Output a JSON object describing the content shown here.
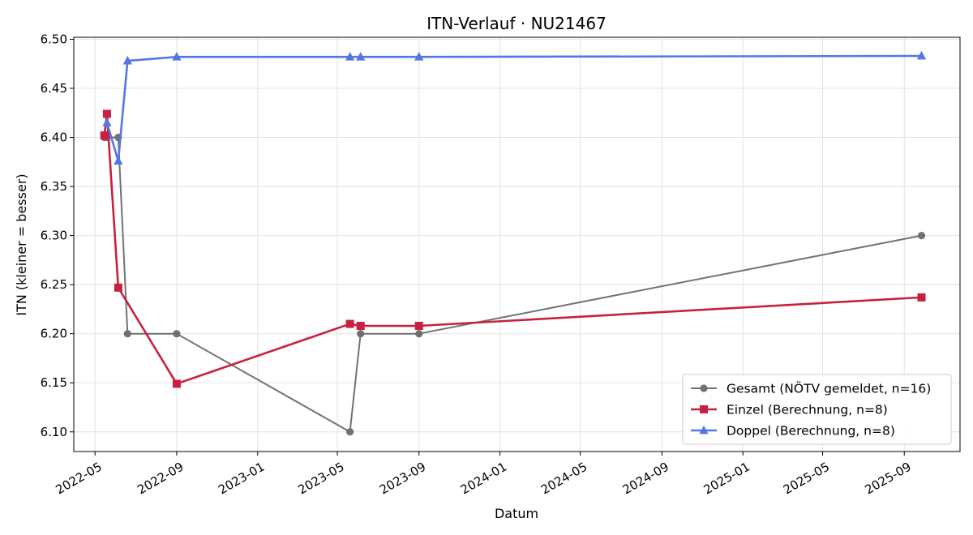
{
  "chart_data": {
    "type": "line",
    "title": "ITN-Verlauf · NU21467",
    "xlabel": "Datum",
    "ylabel": "ITN  (kleiner = besser)",
    "ylim": [
      6.08,
      6.502
    ],
    "xlim": [
      "2022-03-30",
      "2025-11-24"
    ],
    "xticks": [
      "2022-05",
      "2022-09",
      "2023-01",
      "2023-05",
      "2023-09",
      "2024-01",
      "2024-05",
      "2024-09",
      "2025-01",
      "2025-05",
      "2025-09"
    ],
    "yticks": [
      6.1,
      6.15,
      6.2,
      6.25,
      6.3,
      6.35,
      6.4,
      6.45,
      6.5
    ],
    "ytick_labels": [
      "6.10",
      "6.15",
      "6.20",
      "6.25",
      "6.30",
      "6.35",
      "6.40",
      "6.45",
      "6.50"
    ],
    "grid": true,
    "legend_position": "bottom-right",
    "series": [
      {
        "name": "Gesamt (NÖTV gemeldet, n=16)",
        "color": "#444444",
        "marker": "circle",
        "points": [
          {
            "x": "2022-05-15",
            "y": 6.4
          },
          {
            "x": "2022-05-19",
            "y": 6.4
          },
          {
            "x": "2022-06-05",
            "y": 6.4
          },
          {
            "x": "2022-06-19",
            "y": 6.2
          },
          {
            "x": "2022-09-01",
            "y": 6.2
          },
          {
            "x": "2023-05-20",
            "y": 6.1
          },
          {
            "x": "2023-06-05",
            "y": 6.2
          },
          {
            "x": "2023-09-01",
            "y": 6.2
          },
          {
            "x": "2025-09-27",
            "y": 6.3
          }
        ]
      },
      {
        "name": "Einzel (Berechnung, n=8)",
        "color": "#c8203f",
        "marker": "square",
        "points": [
          {
            "x": "2022-05-15",
            "y": 6.402
          },
          {
            "x": "2022-05-19",
            "y": 6.424
          },
          {
            "x": "2022-06-05",
            "y": 6.247
          },
          {
            "x": "2022-09-01",
            "y": 6.149
          },
          {
            "x": "2023-05-20",
            "y": 6.21
          },
          {
            "x": "2023-06-05",
            "y": 6.208
          },
          {
            "x": "2023-09-01",
            "y": 6.208
          },
          {
            "x": "2025-09-27",
            "y": 6.237
          }
        ]
      },
      {
        "name": "Doppel (Berechnung, n=8)",
        "color": "#5577e5",
        "marker": "triangle",
        "points": [
          {
            "x": "2022-05-19",
            "y": 6.415
          },
          {
            "x": "2022-06-05",
            "y": 6.376
          },
          {
            "x": "2022-06-19",
            "y": 6.478
          },
          {
            "x": "2022-09-01",
            "y": 6.482
          },
          {
            "x": "2023-05-20",
            "y": 6.482
          },
          {
            "x": "2023-06-05",
            "y": 6.482
          },
          {
            "x": "2023-09-01",
            "y": 6.482
          },
          {
            "x": "2025-09-27",
            "y": 6.483
          }
        ]
      }
    ]
  }
}
